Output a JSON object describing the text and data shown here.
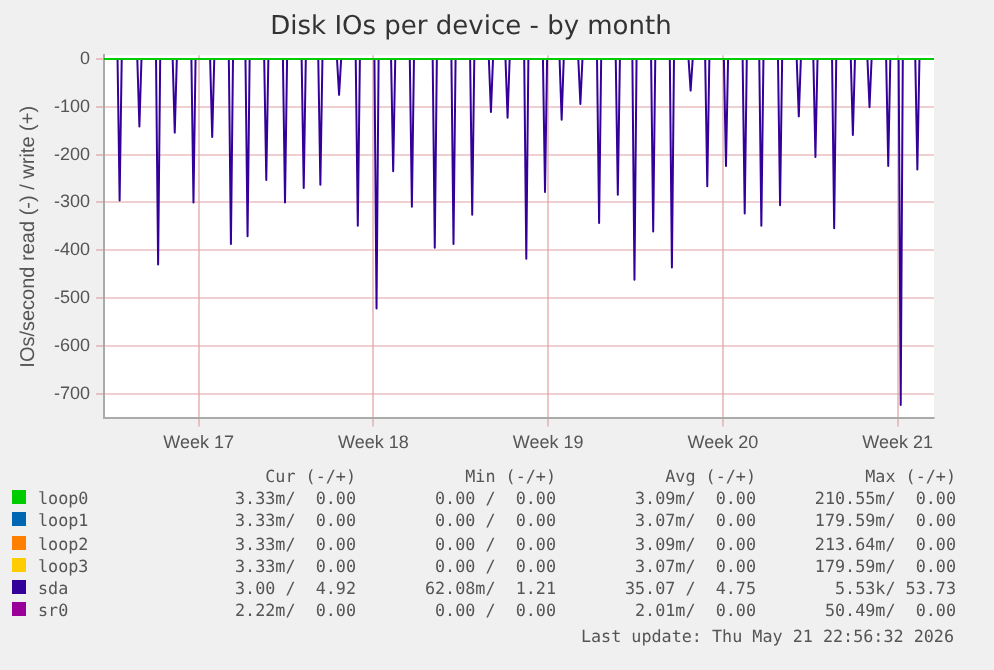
{
  "chart_data": {
    "type": "line",
    "title": "Disk IOs per device - by month",
    "ylabel": "IOs/second read (-) / write (+)",
    "xlim": [
      "2026-04-19T05:00",
      "2026-05-22T11:00"
    ],
    "ylim": [
      -752,
      8
    ],
    "xticks": [
      {
        "value": "2026-04-23T00:00",
        "label": "Week 17"
      },
      {
        "value": "2026-04-30T00:00",
        "label": "Week 18"
      },
      {
        "value": "2026-05-07T00:00",
        "label": "Week 19"
      },
      {
        "value": "2026-05-14T00:00",
        "label": "Week 20"
      },
      {
        "value": "2026-05-21T00:00",
        "label": "Week 21"
      }
    ],
    "yticks": [
      0,
      -100,
      -200,
      -300,
      -400,
      -500,
      -600,
      -700
    ],
    "grid": true,
    "legend": "bottom",
    "marker": "none",
    "line_style": "solid",
    "series": [
      {
        "name": "loop0",
        "color": "#00cc00",
        "x": [
          "2026-04-19T05:00",
          "2026-05-22T11:00"
        ],
        "values": [
          0,
          0
        ]
      },
      {
        "name": "loop1",
        "color": "#0066b3"
      },
      {
        "name": "loop2",
        "color": "#ff8000"
      },
      {
        "name": "loop3",
        "color": "#ffcc00"
      },
      {
        "name": "sda",
        "color": "#330099",
        "x": [
          "2026-04-19T05:00",
          "2026-04-19T18:00",
          "2026-04-19T20:00",
          "2026-04-19T22:00",
          "2026-04-20T13:00",
          "2026-04-20T15:00",
          "2026-04-20T17:00",
          "2026-04-21T07:00",
          "2026-04-21T09:00",
          "2026-04-21T11:00",
          "2026-04-21T23:00",
          "2026-04-22T01:00",
          "2026-04-22T03:00",
          "2026-04-22T17:00",
          "2026-04-22T19:00",
          "2026-04-22T21:00",
          "2026-04-23T11:00",
          "2026-04-23T13:00",
          "2026-04-23T15:00",
          "2026-04-24T05:00",
          "2026-04-24T07:00",
          "2026-04-24T09:00",
          "2026-04-24T21:00",
          "2026-04-24T23:00",
          "2026-04-25T01:00",
          "2026-04-25T15:00",
          "2026-04-25T17:00",
          "2026-04-25T19:00",
          "2026-04-26T09:00",
          "2026-04-26T11:00",
          "2026-04-26T13:00",
          "2026-04-27T03:00",
          "2026-04-27T05:00",
          "2026-04-27T07:00",
          "2026-04-27T19:00",
          "2026-04-27T21:00",
          "2026-04-27T23:00",
          "2026-04-28T13:00",
          "2026-04-28T15:00",
          "2026-04-28T17:00",
          "2026-04-29T07:00",
          "2026-04-29T09:00",
          "2026-04-29T11:00",
          "2026-04-30T01:00",
          "2026-04-30T03:00",
          "2026-04-30T05:00",
          "2026-04-30T17:00",
          "2026-04-30T19:00",
          "2026-04-30T21:00",
          "2026-05-01T11:00",
          "2026-05-01T13:00",
          "2026-05-01T15:00",
          "2026-05-02T09:00",
          "2026-05-02T11:00",
          "2026-05-02T13:00",
          "2026-05-03T03:00",
          "2026-05-03T05:00",
          "2026-05-03T07:00",
          "2026-05-03T21:00",
          "2026-05-03T23:00",
          "2026-05-04T01:00",
          "2026-05-04T15:00",
          "2026-05-04T17:00",
          "2026-05-04T19:00",
          "2026-05-05T07:00",
          "2026-05-05T09:00",
          "2026-05-05T11:00",
          "2026-05-06T01:00",
          "2026-05-06T03:00",
          "2026-05-06T05:00",
          "2026-05-06T19:00",
          "2026-05-06T21:00",
          "2026-05-06T23:00",
          "2026-05-07T11:00",
          "2026-05-07T13:00",
          "2026-05-07T15:00",
          "2026-05-08T05:00",
          "2026-05-08T07:00",
          "2026-05-08T09:00",
          "2026-05-08T23:00",
          "2026-05-09T01:00",
          "2026-05-09T03:00",
          "2026-05-09T17:00",
          "2026-05-09T19:00",
          "2026-05-09T21:00",
          "2026-05-10T09:00",
          "2026-05-10T11:00",
          "2026-05-10T13:00",
          "2026-05-11T03:00",
          "2026-05-11T05:00",
          "2026-05-11T07:00",
          "2026-05-11T21:00",
          "2026-05-11T23:00",
          "2026-05-12T01:00",
          "2026-05-12T15:00",
          "2026-05-12T17:00",
          "2026-05-12T19:00",
          "2026-05-13T07:00",
          "2026-05-13T09:00",
          "2026-05-13T11:00",
          "2026-05-14T01:00",
          "2026-05-14T03:00",
          "2026-05-14T05:00",
          "2026-05-14T19:00",
          "2026-05-14T21:00",
          "2026-05-14T23:00",
          "2026-05-15T11:00",
          "2026-05-15T13:00",
          "2026-05-15T15:00",
          "2026-05-16T05:00",
          "2026-05-16T07:00",
          "2026-05-16T09:00",
          "2026-05-16T23:00",
          "2026-05-17T01:00",
          "2026-05-17T03:00",
          "2026-05-17T15:00",
          "2026-05-17T17:00",
          "2026-05-17T19:00",
          "2026-05-18T09:00",
          "2026-05-18T11:00",
          "2026-05-18T13:00",
          "2026-05-19T03:00",
          "2026-05-19T05:00",
          "2026-05-19T07:00",
          "2026-05-19T19:00",
          "2026-05-19T21:00",
          "2026-05-19T23:00",
          "2026-05-20T13:00",
          "2026-05-20T15:00",
          "2026-05-20T17:00",
          "2026-05-21T01:00",
          "2026-05-21T03:00",
          "2026-05-21T05:00",
          "2026-05-21T17:00",
          "2026-05-21T19:00",
          "2026-05-21T21:00",
          "2026-05-22T11:00"
        ],
        "values": [
          0,
          0,
          -296,
          0,
          0,
          -141,
          0,
          0,
          -430,
          0,
          0,
          -154,
          0,
          0,
          -300,
          0,
          0,
          -163,
          0,
          0,
          -387,
          0,
          0,
          -371,
          0,
          0,
          -253,
          0,
          0,
          -300,
          0,
          0,
          -270,
          0,
          0,
          -263,
          0,
          0,
          -75,
          0,
          0,
          -349,
          0,
          0,
          -522,
          0,
          0,
          -235,
          0,
          0,
          -309,
          0,
          0,
          -395,
          0,
          0,
          -387,
          0,
          0,
          -326,
          0,
          0,
          -111,
          0,
          0,
          -123,
          0,
          0,
          -418,
          0,
          0,
          -278,
          0,
          0,
          -127,
          0,
          0,
          -94,
          0,
          0,
          -343,
          0,
          0,
          -284,
          0,
          0,
          -462,
          0,
          0,
          -361,
          0,
          0,
          -436,
          0,
          0,
          -66,
          0,
          0,
          -266,
          0,
          0,
          -224,
          0,
          0,
          -323,
          0,
          0,
          -349,
          0,
          0,
          -306,
          0,
          0,
          -120,
          0,
          0,
          -205,
          0,
          0,
          -354,
          0,
          0,
          -159,
          0,
          0,
          -101,
          0,
          0,
          -224,
          0,
          0,
          -724,
          0,
          0,
          -231,
          0,
          0
        ]
      },
      {
        "name": "sr0",
        "color": "#990099"
      }
    ],
    "annotations": [
      "Cur (-/+)",
      "Min (-/+)",
      "Avg (-/+)",
      "Max (-/+)",
      "3.33m/  0.00",
      "0.00 /  0.00",
      "3.09m/  0.00",
      "210.55m/  0.00",
      "3.33m/  0.00",
      "0.00 /  0.00",
      "3.07m/  0.00",
      "179.59m/  0.00",
      "3.33m/  0.00",
      "0.00 /  0.00",
      "3.09m/  0.00",
      "213.64m/  0.00",
      "3.33m/  0.00",
      "0.00 /  0.00",
      "3.07m/  0.00",
      "179.59m/  0.00",
      "3.00 /  4.92",
      "62.08m/  1.21",
      "35.07 /  4.75",
      "5.53k/ 53.73",
      "2.22m/  0.00",
      "0.00 /  0.00",
      "2.01m/  0.00",
      "50.49m/  0.00",
      "Last update: Thu May 21 22:56:32 2026"
    ]
  }
}
